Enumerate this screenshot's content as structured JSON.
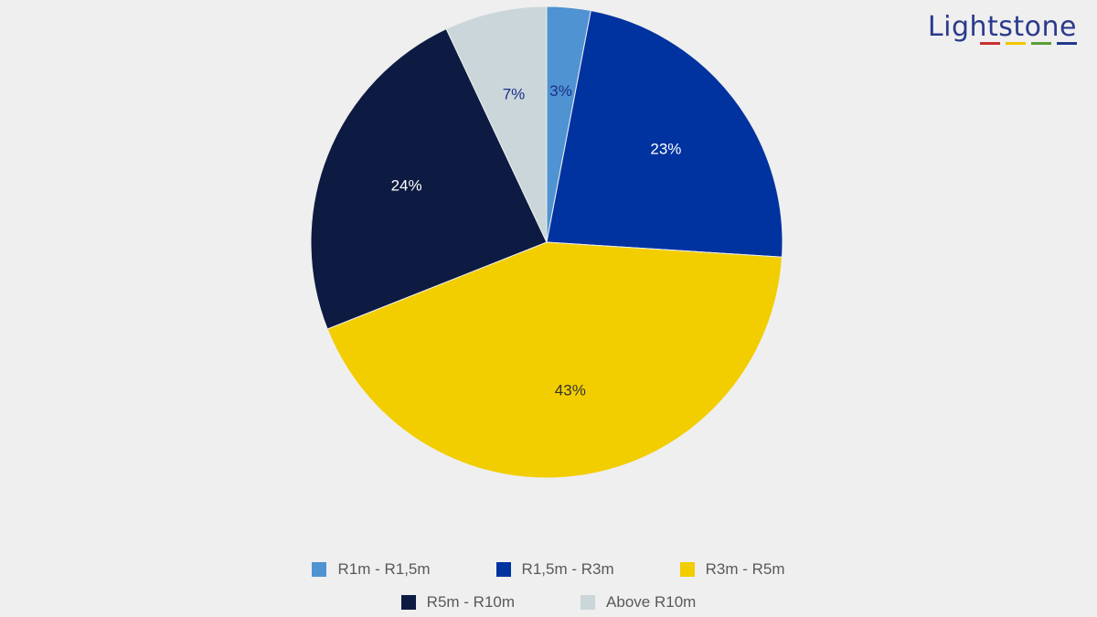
{
  "brand": {
    "logo_text": "Lightstone",
    "logo_bar_colors": [
      "#c8312f",
      "#f2c500",
      "#5a9e3a",
      "#1f3a8c"
    ]
  },
  "chart_data": {
    "type": "pie",
    "start_angle_deg": 0,
    "direction": "clockwise",
    "legend_position": "bottom",
    "slices": [
      {
        "label": "R1m - R1,5m",
        "value": 3,
        "display": "3%",
        "color": "#4f93d2",
        "label_color": "#1a2f8a"
      },
      {
        "label": "R1,5m - R3m",
        "value": 23,
        "display": "23%",
        "color": "#0033a0",
        "label_color": "#ffffff"
      },
      {
        "label": "R3m - R5m",
        "value": 43,
        "display": "43%",
        "color": "#f2cd00",
        "label_color": "#333333"
      },
      {
        "label": "R5m - R10m",
        "value": 24,
        "display": "24%",
        "color": "#0d1b42",
        "label_color": "#ffffff"
      },
      {
        "label": "Above R10m",
        "value": 7,
        "display": "7%",
        "color": "#cbd6da",
        "label_color": "#1a2f8a"
      }
    ]
  }
}
